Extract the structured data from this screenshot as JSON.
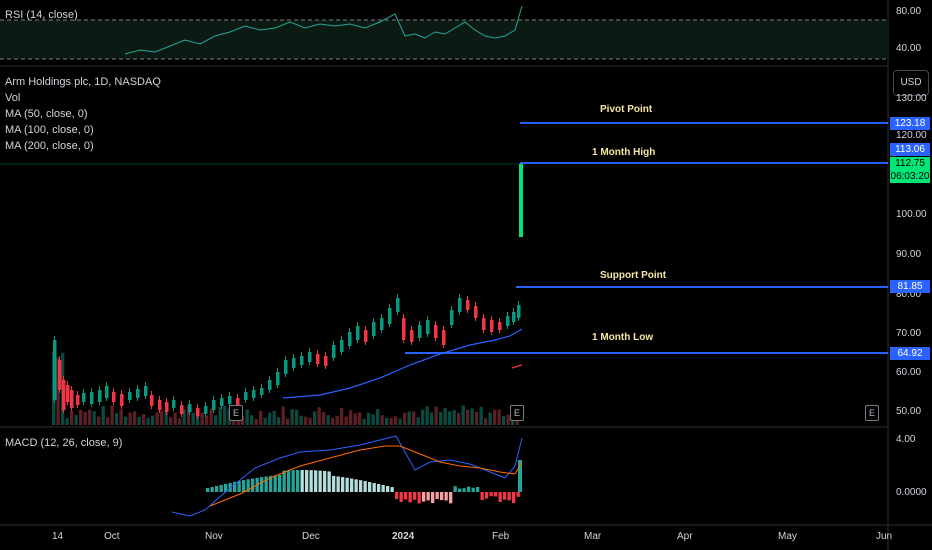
{
  "rsi": {
    "legend": "RSI (14, close)",
    "axis": [
      "80.00",
      "40.00"
    ]
  },
  "main": {
    "title": "Arm Holdings plc, 1D, NASDAQ",
    "vol": "Vol",
    "ma50": "MA (50, close, 0)",
    "ma100": "MA (100, close, 0)",
    "ma200": "MA (200, close, 0)",
    "currency": "USD",
    "axis": [
      "130.00",
      "120.00",
      "100.00",
      "90.00",
      "80.00",
      "70.00",
      "60.00",
      "50.00"
    ],
    "tags": {
      "pivot": "123.18",
      "high": "113.06",
      "last": "112.75",
      "countdown": "06:03:20",
      "support": "81.85",
      "low": "64.92"
    },
    "levels": {
      "pivot": "Pivot Point",
      "high": "1 Month High",
      "support": "Support Point",
      "low": "1 Month Low"
    },
    "earnings": [
      "E",
      "E",
      "E"
    ]
  },
  "macd": {
    "legend": "MACD (12, 26, close, 9)",
    "axis": [
      "4.00",
      "0.0000"
    ]
  },
  "xaxis": [
    "14",
    "Oct",
    "Nov",
    "Dec",
    "2024",
    "Feb",
    "Mar",
    "Apr",
    "May",
    "Jun"
  ],
  "colors": {
    "up": "#089981",
    "down": "#f23645",
    "ma": "#2962ff",
    "level": "#2962ff",
    "last": "#00e676"
  }
}
